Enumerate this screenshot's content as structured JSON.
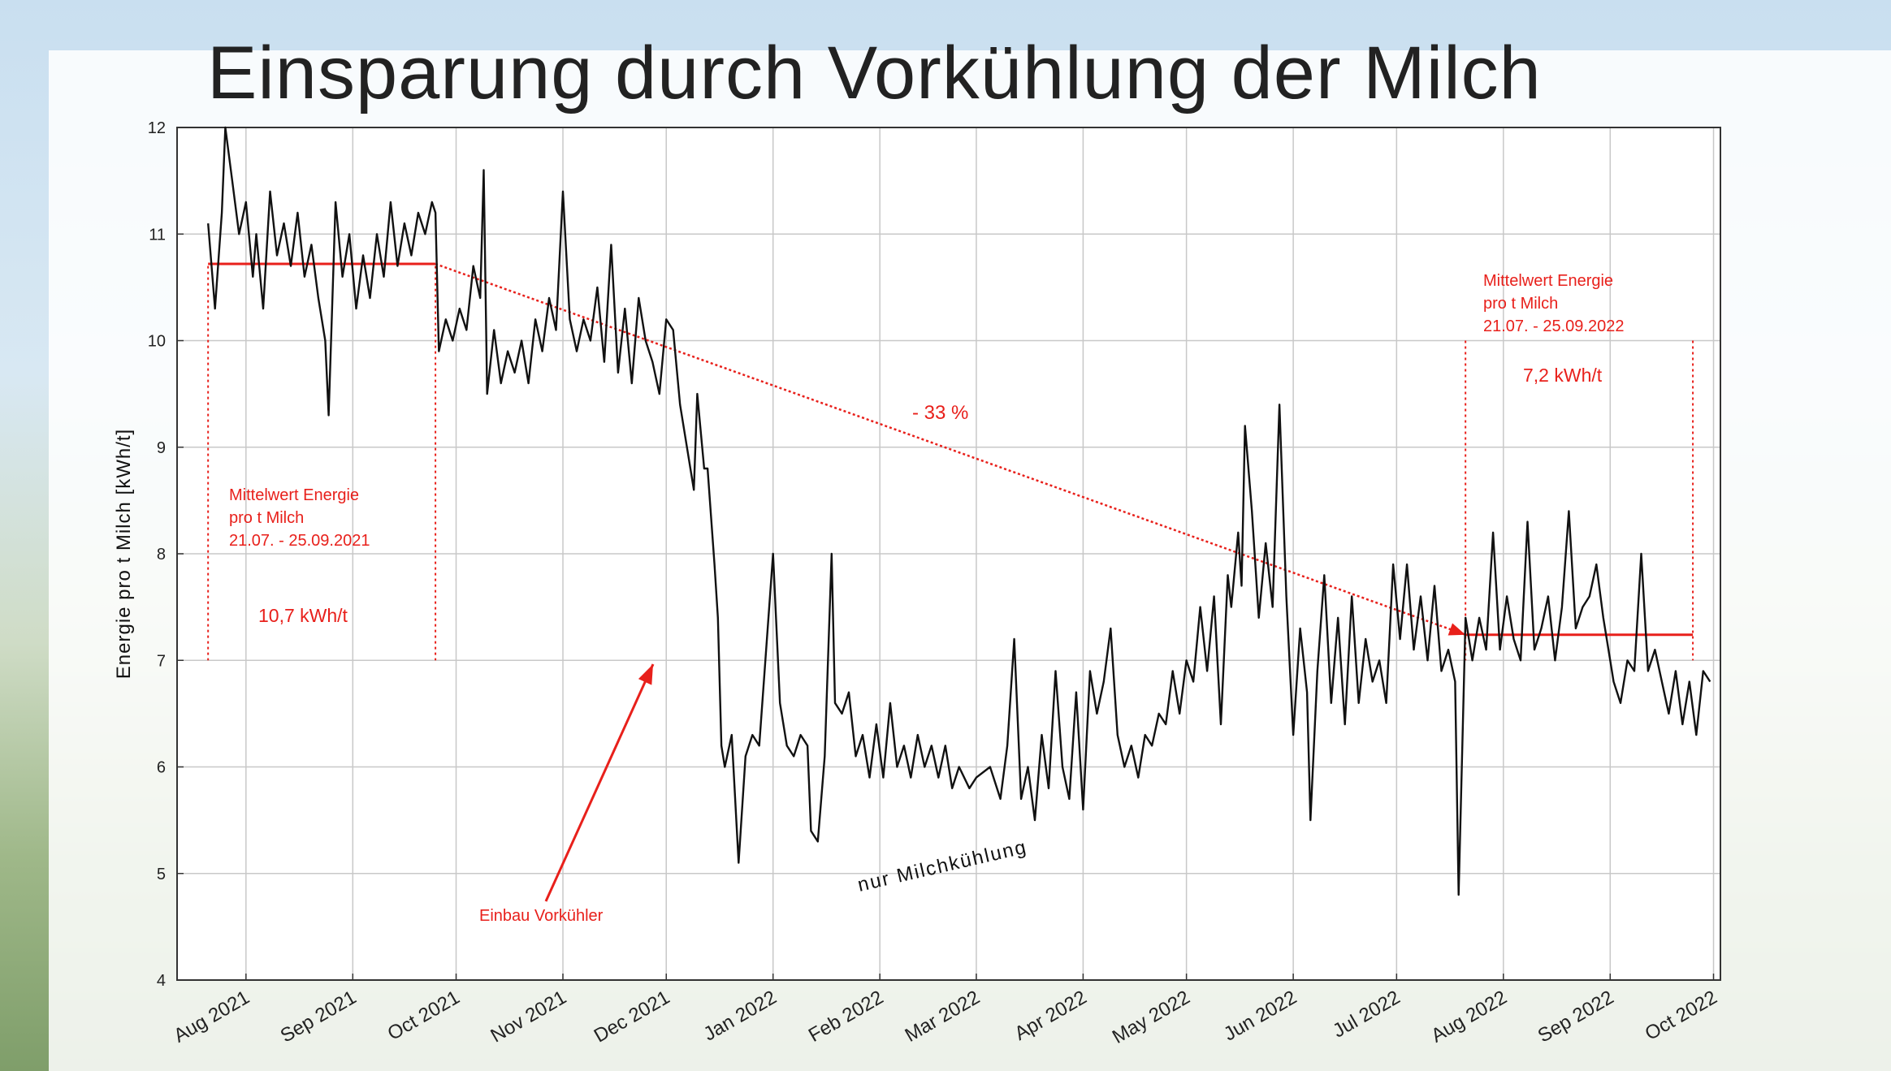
{
  "title": "Einsparung durch Vorkühlung der Milch",
  "chart_data": {
    "type": "line",
    "ylabel": "Energie pro t Milch [kWh/t]",
    "ylim": [
      4,
      12
    ],
    "yticks": [
      4,
      5,
      6,
      7,
      8,
      9,
      10,
      11,
      12
    ],
    "xlim": [
      "2021-07-12",
      "2022-10-03"
    ],
    "xticks": [
      {
        "date": "2021-08-01",
        "label": "Aug 2021"
      },
      {
        "date": "2021-09-01",
        "label": "Sep 2021"
      },
      {
        "date": "2021-10-01",
        "label": "Oct 2021"
      },
      {
        "date": "2021-11-01",
        "label": "Nov 2021"
      },
      {
        "date": "2021-12-01",
        "label": "Dec 2021"
      },
      {
        "date": "2022-01-01",
        "label": "Jan 2022"
      },
      {
        "date": "2022-02-01",
        "label": "Feb 2022"
      },
      {
        "date": "2022-03-01",
        "label": "Mar 2022"
      },
      {
        "date": "2022-04-01",
        "label": "Apr 2022"
      },
      {
        "date": "2022-05-01",
        "label": "May 2022"
      },
      {
        "date": "2022-06-01",
        "label": "Jun 2022"
      },
      {
        "date": "2022-07-01",
        "label": "Jul 2022"
      },
      {
        "date": "2022-08-01",
        "label": "Aug 2022"
      },
      {
        "date": "2022-09-01",
        "label": "Sep 2022"
      },
      {
        "date": "2022-10-01",
        "label": "Oct 2022"
      }
    ],
    "grid": true,
    "series": [
      {
        "values": [
          [
            "2021-07-21",
            11.1
          ],
          [
            "2021-07-23",
            10.3
          ],
          [
            "2021-07-25",
            11.2
          ],
          [
            "2021-07-26",
            12.0
          ],
          [
            "2021-07-28",
            11.5
          ],
          [
            "2021-07-30",
            11.0
          ],
          [
            "2021-08-01",
            11.3
          ],
          [
            "2021-08-03",
            10.6
          ],
          [
            "2021-08-04",
            11.0
          ],
          [
            "2021-08-06",
            10.3
          ],
          [
            "2021-08-08",
            11.4
          ],
          [
            "2021-08-10",
            10.8
          ],
          [
            "2021-08-12",
            11.1
          ],
          [
            "2021-08-14",
            10.7
          ],
          [
            "2021-08-16",
            11.2
          ],
          [
            "2021-08-18",
            10.6
          ],
          [
            "2021-08-20",
            10.9
          ],
          [
            "2021-08-22",
            10.4
          ],
          [
            "2021-08-24",
            10.0
          ],
          [
            "2021-08-25",
            9.3
          ],
          [
            "2021-08-27",
            11.3
          ],
          [
            "2021-08-29",
            10.6
          ],
          [
            "2021-08-31",
            11.0
          ],
          [
            "2021-09-02",
            10.3
          ],
          [
            "2021-09-04",
            10.8
          ],
          [
            "2021-09-06",
            10.4
          ],
          [
            "2021-09-08",
            11.0
          ],
          [
            "2021-09-10",
            10.6
          ],
          [
            "2021-09-12",
            11.3
          ],
          [
            "2021-09-14",
            10.7
          ],
          [
            "2021-09-16",
            11.1
          ],
          [
            "2021-09-18",
            10.8
          ],
          [
            "2021-09-20",
            11.2
          ],
          [
            "2021-09-22",
            11.0
          ],
          [
            "2021-09-24",
            11.3
          ],
          [
            "2021-09-25",
            11.2
          ],
          [
            "2021-09-26",
            9.9
          ],
          [
            "2021-09-28",
            10.2
          ],
          [
            "2021-09-30",
            10.0
          ],
          [
            "2021-10-02",
            10.3
          ],
          [
            "2021-10-04",
            10.1
          ],
          [
            "2021-10-06",
            10.7
          ],
          [
            "2021-10-08",
            10.4
          ],
          [
            "2021-10-09",
            11.6
          ],
          [
            "2021-10-10",
            9.5
          ],
          [
            "2021-10-12",
            10.1
          ],
          [
            "2021-10-14",
            9.6
          ],
          [
            "2021-10-16",
            9.9
          ],
          [
            "2021-10-18",
            9.7
          ],
          [
            "2021-10-20",
            10.0
          ],
          [
            "2021-10-22",
            9.6
          ],
          [
            "2021-10-24",
            10.2
          ],
          [
            "2021-10-26",
            9.9
          ],
          [
            "2021-10-28",
            10.4
          ],
          [
            "2021-10-30",
            10.1
          ],
          [
            "2021-11-01",
            11.4
          ],
          [
            "2021-11-03",
            10.2
          ],
          [
            "2021-11-05",
            9.9
          ],
          [
            "2021-11-07",
            10.2
          ],
          [
            "2021-11-09",
            10.0
          ],
          [
            "2021-11-11",
            10.5
          ],
          [
            "2021-11-13",
            9.8
          ],
          [
            "2021-11-15",
            10.9
          ],
          [
            "2021-11-17",
            9.7
          ],
          [
            "2021-11-19",
            10.3
          ],
          [
            "2021-11-21",
            9.6
          ],
          [
            "2021-11-23",
            10.4
          ],
          [
            "2021-11-25",
            10.0
          ],
          [
            "2021-11-27",
            9.8
          ],
          [
            "2021-11-29",
            9.5
          ],
          [
            "2021-12-01",
            10.2
          ],
          [
            "2021-12-03",
            10.1
          ],
          [
            "2021-12-05",
            9.4
          ],
          [
            "2021-12-07",
            9.0
          ],
          [
            "2021-12-09",
            8.6
          ],
          [
            "2021-12-10",
            9.5
          ],
          [
            "2021-12-12",
            8.8
          ],
          [
            "2021-12-13",
            8.8
          ],
          [
            "2021-12-15",
            7.9
          ],
          [
            "2021-12-16",
            7.4
          ],
          [
            "2021-12-17",
            6.2
          ],
          [
            "2021-12-18",
            6.0
          ],
          [
            "2021-12-20",
            6.3
          ],
          [
            "2021-12-22",
            5.1
          ],
          [
            "2021-12-24",
            6.1
          ],
          [
            "2021-12-26",
            6.3
          ],
          [
            "2021-12-28",
            6.2
          ],
          [
            "2021-12-30",
            7.1
          ],
          [
            "2022-01-01",
            8.0
          ],
          [
            "2022-01-03",
            6.6
          ],
          [
            "2022-01-05",
            6.2
          ],
          [
            "2022-01-07",
            6.1
          ],
          [
            "2022-01-09",
            6.3
          ],
          [
            "2022-01-11",
            6.2
          ],
          [
            "2022-01-12",
            5.4
          ],
          [
            "2022-01-14",
            5.3
          ],
          [
            "2022-01-16",
            6.1
          ],
          [
            "2022-01-18",
            8.0
          ],
          [
            "2022-01-19",
            6.6
          ],
          [
            "2022-01-21",
            6.5
          ],
          [
            "2022-01-23",
            6.7
          ],
          [
            "2022-01-25",
            6.1
          ],
          [
            "2022-01-27",
            6.3
          ],
          [
            "2022-01-29",
            5.9
          ],
          [
            "2022-01-31",
            6.4
          ],
          [
            "2022-02-02",
            5.9
          ],
          [
            "2022-02-04",
            6.6
          ],
          [
            "2022-02-06",
            6.0
          ],
          [
            "2022-02-08",
            6.2
          ],
          [
            "2022-02-10",
            5.9
          ],
          [
            "2022-02-12",
            6.3
          ],
          [
            "2022-02-14",
            6.0
          ],
          [
            "2022-02-16",
            6.2
          ],
          [
            "2022-02-18",
            5.9
          ],
          [
            "2022-02-20",
            6.2
          ],
          [
            "2022-02-22",
            5.8
          ],
          [
            "2022-02-24",
            6.0
          ],
          [
            "2022-02-27",
            5.8
          ],
          [
            "2022-03-01",
            5.9
          ],
          [
            "2022-03-05",
            6.0
          ],
          [
            "2022-03-08",
            5.7
          ],
          [
            "2022-03-10",
            6.2
          ],
          [
            "2022-03-12",
            7.2
          ],
          [
            "2022-03-14",
            5.7
          ],
          [
            "2022-03-16",
            6.0
          ],
          [
            "2022-03-18",
            5.5
          ],
          [
            "2022-03-20",
            6.3
          ],
          [
            "2022-03-22",
            5.8
          ],
          [
            "2022-03-24",
            6.9
          ],
          [
            "2022-03-26",
            6.0
          ],
          [
            "2022-03-28",
            5.7
          ],
          [
            "2022-03-30",
            6.7
          ],
          [
            "2022-04-01",
            5.6
          ],
          [
            "2022-04-03",
            6.9
          ],
          [
            "2022-04-05",
            6.5
          ],
          [
            "2022-04-07",
            6.8
          ],
          [
            "2022-04-09",
            7.3
          ],
          [
            "2022-04-11",
            6.3
          ],
          [
            "2022-04-13",
            6.0
          ],
          [
            "2022-04-15",
            6.2
          ],
          [
            "2022-04-17",
            5.9
          ],
          [
            "2022-04-19",
            6.3
          ],
          [
            "2022-04-21",
            6.2
          ],
          [
            "2022-04-23",
            6.5
          ],
          [
            "2022-04-25",
            6.4
          ],
          [
            "2022-04-27",
            6.9
          ],
          [
            "2022-04-29",
            6.5
          ],
          [
            "2022-05-01",
            7.0
          ],
          [
            "2022-05-03",
            6.8
          ],
          [
            "2022-05-05",
            7.5
          ],
          [
            "2022-05-07",
            6.9
          ],
          [
            "2022-05-09",
            7.6
          ],
          [
            "2022-05-11",
            6.4
          ],
          [
            "2022-05-13",
            7.8
          ],
          [
            "2022-05-14",
            7.5
          ],
          [
            "2022-05-16",
            8.2
          ],
          [
            "2022-05-17",
            7.7
          ],
          [
            "2022-05-18",
            9.2
          ],
          [
            "2022-05-20",
            8.4
          ],
          [
            "2022-05-22",
            7.4
          ],
          [
            "2022-05-24",
            8.1
          ],
          [
            "2022-05-26",
            7.5
          ],
          [
            "2022-05-28",
            9.4
          ],
          [
            "2022-05-30",
            7.6
          ],
          [
            "2022-06-01",
            6.3
          ],
          [
            "2022-06-03",
            7.3
          ],
          [
            "2022-06-05",
            6.7
          ],
          [
            "2022-06-06",
            5.5
          ],
          [
            "2022-06-08",
            6.9
          ],
          [
            "2022-06-10",
            7.8
          ],
          [
            "2022-06-12",
            6.6
          ],
          [
            "2022-06-14",
            7.4
          ],
          [
            "2022-06-16",
            6.4
          ],
          [
            "2022-06-18",
            7.6
          ],
          [
            "2022-06-20",
            6.6
          ],
          [
            "2022-06-22",
            7.2
          ],
          [
            "2022-06-24",
            6.8
          ],
          [
            "2022-06-26",
            7.0
          ],
          [
            "2022-06-28",
            6.6
          ],
          [
            "2022-06-30",
            7.9
          ],
          [
            "2022-07-02",
            7.2
          ],
          [
            "2022-07-04",
            7.9
          ],
          [
            "2022-07-06",
            7.1
          ],
          [
            "2022-07-08",
            7.6
          ],
          [
            "2022-07-10",
            7.0
          ],
          [
            "2022-07-12",
            7.7
          ],
          [
            "2022-07-14",
            6.9
          ],
          [
            "2022-07-16",
            7.1
          ],
          [
            "2022-07-18",
            6.8
          ],
          [
            "2022-07-19",
            4.8
          ],
          [
            "2022-07-21",
            7.4
          ],
          [
            "2022-07-23",
            7.0
          ],
          [
            "2022-07-25",
            7.4
          ],
          [
            "2022-07-27",
            7.1
          ],
          [
            "2022-07-29",
            8.2
          ],
          [
            "2022-07-31",
            7.1
          ],
          [
            "2022-08-02",
            7.6
          ],
          [
            "2022-08-04",
            7.2
          ],
          [
            "2022-08-06",
            7.0
          ],
          [
            "2022-08-08",
            8.3
          ],
          [
            "2022-08-10",
            7.1
          ],
          [
            "2022-08-12",
            7.3
          ],
          [
            "2022-08-14",
            7.6
          ],
          [
            "2022-08-16",
            7.0
          ],
          [
            "2022-08-18",
            7.5
          ],
          [
            "2022-08-20",
            8.4
          ],
          [
            "2022-08-22",
            7.3
          ],
          [
            "2022-08-24",
            7.5
          ],
          [
            "2022-08-26",
            7.6
          ],
          [
            "2022-08-28",
            7.9
          ],
          [
            "2022-08-30",
            7.4
          ],
          [
            "2022-09-01",
            7.0
          ],
          [
            "2022-09-02",
            6.8
          ],
          [
            "2022-09-04",
            6.6
          ],
          [
            "2022-09-06",
            7.0
          ],
          [
            "2022-09-08",
            6.9
          ],
          [
            "2022-09-10",
            8.0
          ],
          [
            "2022-09-12",
            6.9
          ],
          [
            "2022-09-14",
            7.1
          ],
          [
            "2022-09-16",
            6.8
          ],
          [
            "2022-09-18",
            6.5
          ],
          [
            "2022-09-20",
            6.9
          ],
          [
            "2022-09-22",
            6.4
          ],
          [
            "2022-09-24",
            6.8
          ],
          [
            "2022-09-26",
            6.3
          ],
          [
            "2022-09-28",
            6.9
          ],
          [
            "2022-09-30",
            6.8
          ]
        ]
      }
    ],
    "mean_lines": [
      {
        "from": "2021-07-21",
        "to": "2021-09-25",
        "value": 10.72
      },
      {
        "from": "2022-07-21",
        "to": "2022-09-25",
        "value": 7.24
      }
    ],
    "trend_arrow": {
      "from": [
        "2021-09-25",
        10.72
      ],
      "to": [
        "2022-07-21",
        7.24
      ]
    },
    "range_markers": [
      {
        "from": "2021-07-21",
        "to": "2021-09-25",
        "ymin": 7,
        "ymax": 10.7
      },
      {
        "from": "2022-07-21",
        "to": "2022-09-25",
        "ymin": 7,
        "ymax": 10.0
      }
    ],
    "annotations": {
      "mean_2021": {
        "line1": "Mittelwert Energie",
        "line2": "pro t Milch",
        "line3": "21.07. - 25.09.2021",
        "value": "10,7 kWh/t"
      },
      "mean_2022": {
        "line1": "Mittelwert Energie",
        "line2": "pro t Milch",
        "line3": "21.07. - 25.09.2022",
        "value": "7,2 kWh/t"
      },
      "reduction": "- 33 %",
      "installation": "Einbau Vorkühler",
      "cooling_only": "nur Milchkühlung"
    },
    "colors": {
      "series": "#111111",
      "annotation": "#e8201b",
      "grid": "#c8c8c8",
      "frame": "#333333"
    }
  }
}
